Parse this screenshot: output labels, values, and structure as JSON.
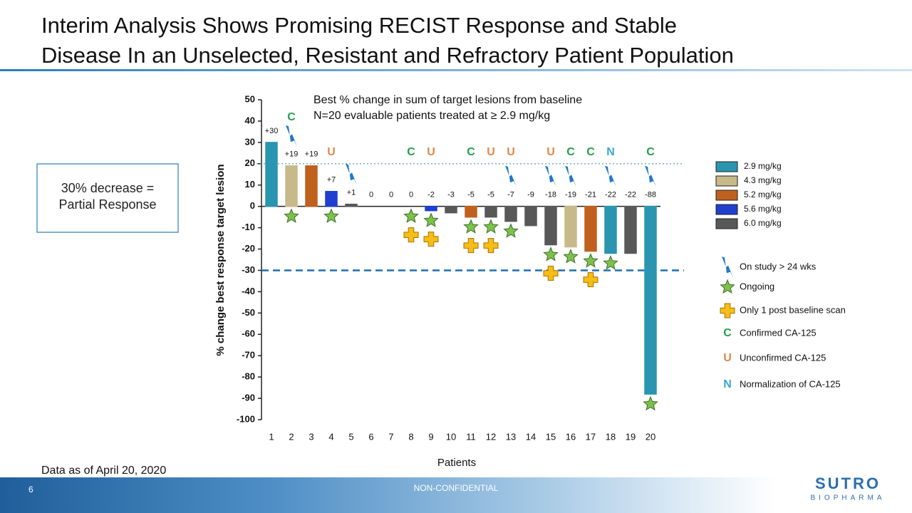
{
  "slide": {
    "title_lines": [
      "Interim Analysis Shows Promising RECIST Response and Stable",
      "Disease In an Unselected, Resistant and Refractory Patient Population"
    ],
    "callout_lines": [
      "30% decrease =",
      "Partial Response"
    ],
    "data_note": "Data as of April 20, 2020",
    "page_number": "6",
    "classification": "NON-CONFIDENTIAL",
    "logo": {
      "name": "SUTRO",
      "tagline": "BIOPHARMA"
    }
  },
  "chart_data": {
    "type": "bar",
    "subtitle_lines": [
      "Best % change in sum of target lesions from baseline",
      "N=20 evaluable patients treated at ≥ 2.9 mg/kg"
    ],
    "x_label": "Patients",
    "y_label": "% change best response target lesion",
    "categories": [
      "1",
      "2",
      "3",
      "4",
      "5",
      "6",
      "7",
      "8",
      "9",
      "10",
      "11",
      "12",
      "13",
      "14",
      "15",
      "16",
      "17",
      "18",
      "19",
      "20"
    ],
    "series": [
      {
        "name": "2.9 mg/kg",
        "color": "#2a95b0",
        "values": [
          30,
          null,
          null,
          null,
          null,
          null,
          null,
          null,
          null,
          null,
          null,
          null,
          null,
          null,
          null,
          null,
          null,
          -22,
          null,
          -88
        ],
        "value_labels": [
          "+30",
          null,
          null,
          null,
          null,
          null,
          null,
          null,
          null,
          null,
          null,
          null,
          null,
          null,
          null,
          null,
          null,
          "-22",
          null,
          "-88"
        ]
      },
      {
        "name": "4.3 mg/kg",
        "color": "#c8b98a",
        "values": [
          null,
          19,
          null,
          null,
          null,
          null,
          null,
          null,
          null,
          null,
          null,
          null,
          null,
          null,
          null,
          -19,
          null,
          null,
          null,
          null
        ],
        "value_labels": [
          null,
          "+19",
          null,
          null,
          null,
          null,
          null,
          null,
          null,
          null,
          null,
          null,
          null,
          null,
          null,
          "-19",
          null,
          null,
          null,
          null
        ]
      },
      {
        "name": "5.2 mg/kg",
        "color": "#c0601e",
        "values": [
          null,
          null,
          19,
          null,
          null,
          null,
          0,
          null,
          null,
          null,
          -5,
          null,
          null,
          null,
          null,
          null,
          -21,
          null,
          null,
          null
        ],
        "value_labels": [
          null,
          null,
          "+19",
          null,
          null,
          null,
          "0",
          null,
          null,
          null,
          "-5",
          null,
          null,
          null,
          null,
          null,
          "-21",
          null,
          null,
          null
        ]
      },
      {
        "name": "5.6 mg/kg",
        "color": "#1f3fd0",
        "values": [
          null,
          null,
          null,
          7,
          null,
          null,
          null,
          null,
          -2,
          null,
          null,
          null,
          null,
          null,
          null,
          null,
          null,
          null,
          null,
          null
        ],
        "value_labels": [
          null,
          null,
          null,
          "+7",
          null,
          null,
          null,
          null,
          "-2",
          null,
          null,
          null,
          null,
          null,
          null,
          null,
          null,
          null,
          null,
          null
        ]
      },
      {
        "name": "6.0 mg/kg",
        "color": "#585858",
        "values": [
          null,
          null,
          null,
          null,
          1,
          0,
          null,
          0,
          null,
          -3,
          null,
          -5,
          -7,
          -9,
          -18,
          null,
          null,
          null,
          -22,
          null
        ],
        "value_labels": [
          null,
          null,
          null,
          null,
          "+1",
          "0",
          null,
          "0",
          null,
          "-3",
          null,
          "-5",
          "-7",
          "-9",
          "-18",
          null,
          null,
          null,
          "-22",
          null
        ]
      }
    ],
    "ylim": [
      -100,
      50
    ],
    "yticks": [
      -100,
      -90,
      -80,
      -70,
      -60,
      -50,
      -40,
      -30,
      -20,
      -10,
      0,
      10,
      20,
      30,
      40,
      50
    ],
    "reference_lines": [
      {
        "value": -30,
        "style": "dashed",
        "color": "#1f6fb0"
      },
      {
        "value": 20,
        "style": "dotted",
        "color": "#4a90c8"
      }
    ],
    "ca125": [
      null,
      "C",
      null,
      "U",
      null,
      null,
      null,
      "C",
      "U",
      null,
      "C",
      "U",
      "U",
      null,
      "U",
      "C",
      "C",
      "N",
      null,
      "C"
    ],
    "ca125_colors": {
      "C": "#22a04a",
      "U": "#e0884a",
      "N": "#3aa8d0"
    },
    "on_study_24wk": [
      false,
      true,
      false,
      false,
      true,
      false,
      false,
      false,
      false,
      false,
      false,
      false,
      true,
      false,
      true,
      true,
      false,
      true,
      false,
      true
    ],
    "ongoing": [
      false,
      true,
      false,
      true,
      false,
      false,
      false,
      true,
      true,
      false,
      true,
      true,
      true,
      false,
      true,
      true,
      true,
      true,
      false,
      true
    ],
    "one_post_baseline_scan": [
      false,
      false,
      false,
      false,
      false,
      false,
      false,
      true,
      true,
      false,
      true,
      true,
      false,
      false,
      true,
      false,
      true,
      false,
      false,
      false
    ],
    "marker_legend": [
      {
        "symbol": "arrow",
        "label": "On study > 24 wks"
      },
      {
        "symbol": "star",
        "label": "Ongoing"
      },
      {
        "symbol": "plus",
        "label": "Only 1 post baseline scan"
      },
      {
        "symbol": "C",
        "label": "Confirmed CA-125"
      },
      {
        "symbol": "U",
        "label": "Unconfirmed CA-125"
      },
      {
        "symbol": "N",
        "label": "Normalization of CA-125"
      }
    ]
  }
}
